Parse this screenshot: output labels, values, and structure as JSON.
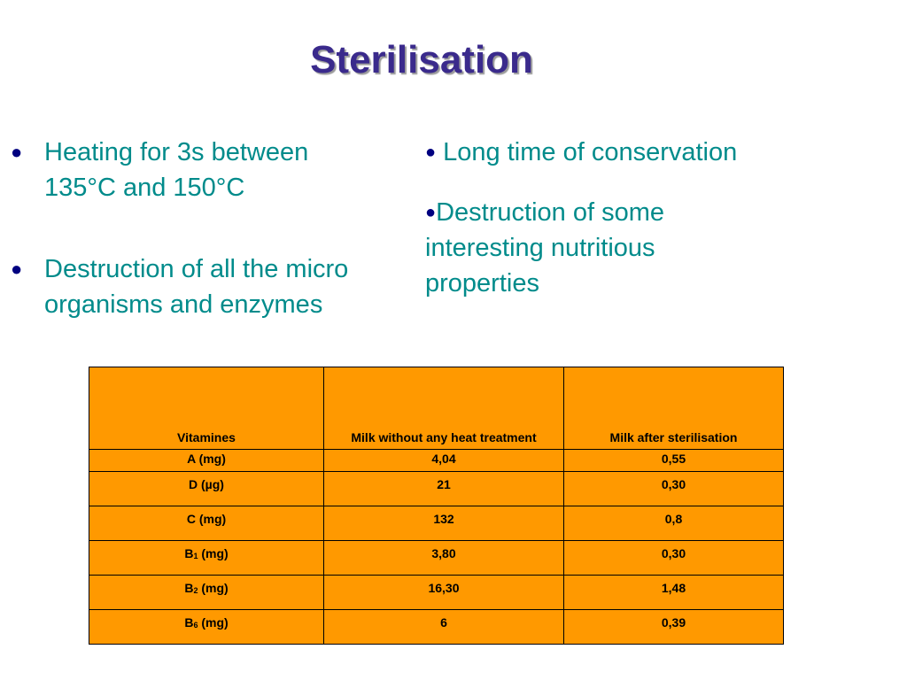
{
  "title": "Sterilisation",
  "left_bullets": [
    {
      "line1": "Heating for 3s between",
      "line2": "135°C and 150°C"
    },
    {
      "line1": "Destruction of all the micro",
      "line2": "organisms and enzymes"
    }
  ],
  "right_bullets": [
    {
      "text": "Long time of conservation"
    },
    {
      "line1": "Destruction of some",
      "line2": "interesting nutritious",
      "line3": "properties"
    }
  ],
  "bullet_glyph": "●",
  "table": {
    "headers": [
      "Vitamines",
      "Milk without any heat treatment",
      "Milk after sterilisation"
    ],
    "rows": [
      {
        "vitamin": "A (mg)",
        "without": "4,04",
        "after": "0,55"
      },
      {
        "vitamin": "D (µg)",
        "without": "21",
        "after": "0,30"
      },
      {
        "vitamin": "C (mg)",
        "without": "132",
        "after": "0,8"
      },
      {
        "vitamin_base": "B",
        "vitamin_sub": "1",
        "vitamin_unit": " (mg)",
        "without": "3,80",
        "after": "0,30"
      },
      {
        "vitamin_base": "B",
        "vitamin_sub": "2",
        "vitamin_unit": " (mg)",
        "without": "16,30",
        "after": "1,48"
      },
      {
        "vitamin_base": "B",
        "vitamin_sub": "6",
        "vitamin_unit": " (mg)",
        "without": "6",
        "after": "0,39"
      }
    ]
  },
  "colors": {
    "title": "#3a2a8c",
    "bullet_text": "#008b8b",
    "bullet_dot": "#000080",
    "table_fill": "#ff9900"
  }
}
